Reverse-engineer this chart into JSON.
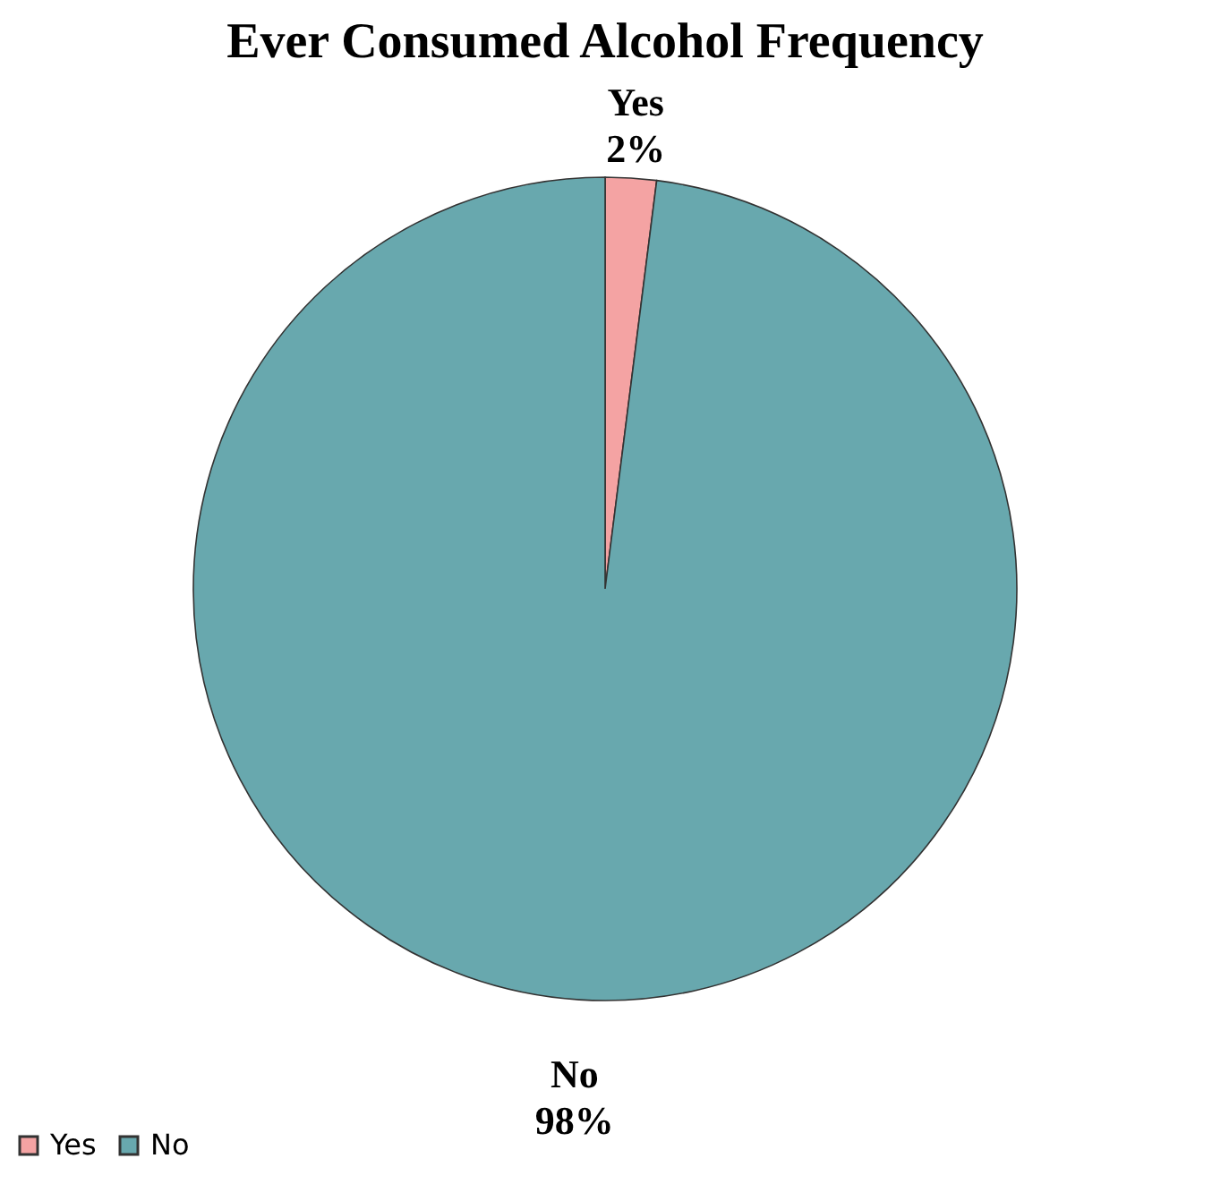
{
  "chart_data": {
    "type": "pie",
    "title": "Ever Consumed Alcohol Frequency",
    "categories": [
      "Yes",
      "No"
    ],
    "values": [
      2,
      98
    ],
    "colors": [
      "#f4a3a3",
      "#68a8ae"
    ],
    "value_labels": [
      "2%",
      "98%"
    ],
    "legend": "bottom"
  }
}
